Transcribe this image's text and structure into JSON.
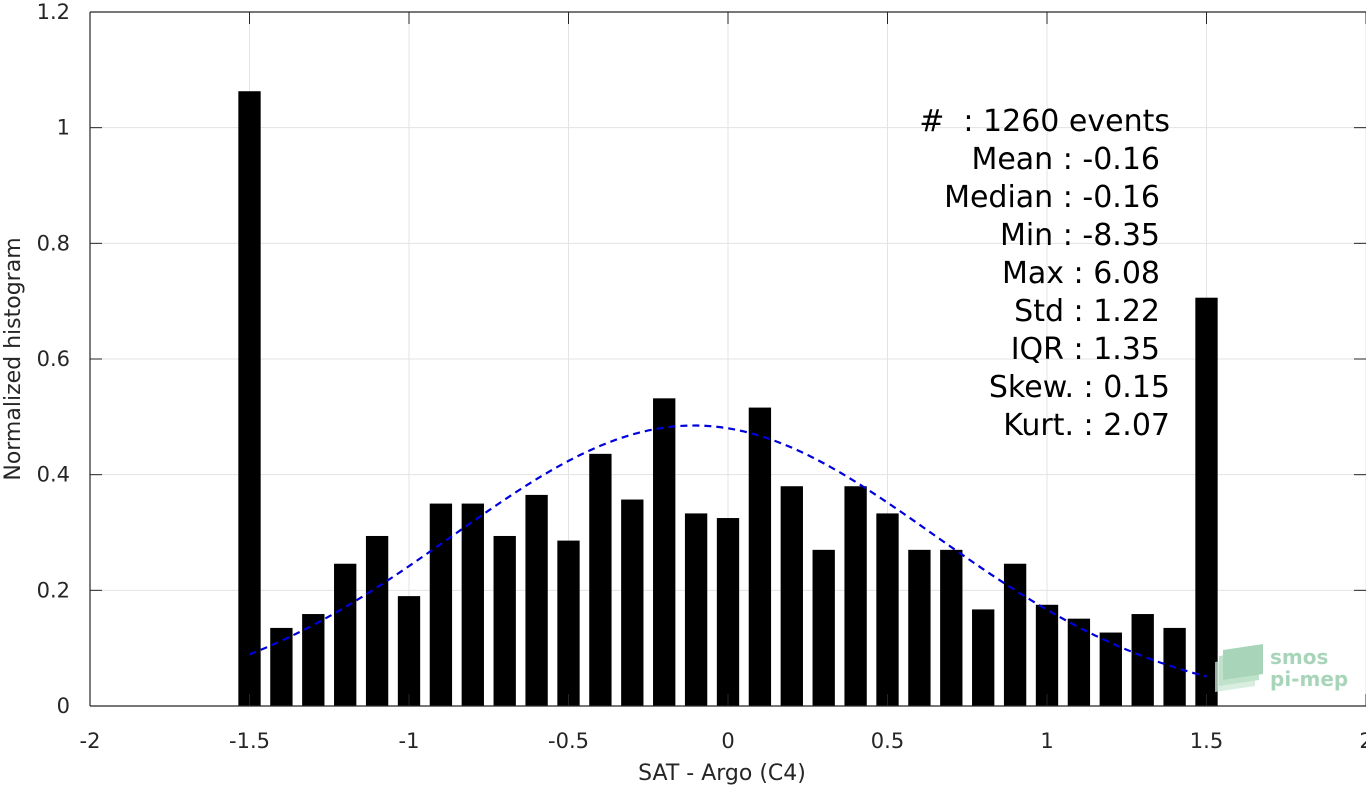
{
  "chart_data": {
    "type": "bar",
    "xlabel": "SAT - Argo (C4)",
    "ylabel": "Normalized histogram",
    "xlim": [
      -2,
      2
    ],
    "ylim": [
      0,
      1.2
    ],
    "xticks": [
      "-2",
      "-1.5",
      "-1",
      "-0.5",
      "0",
      "0.5",
      "1",
      "1.5",
      "2"
    ],
    "xtick_values": [
      -2,
      -1.5,
      -1,
      -0.5,
      0,
      0.5,
      1,
      1.5,
      2
    ],
    "yticks": [
      "0",
      "0.2",
      "0.4",
      "0.6",
      "0.8",
      "1",
      "1.2"
    ],
    "ytick_values": [
      0,
      0.2,
      0.4,
      0.6,
      0.8,
      1,
      1.2
    ],
    "grid": true,
    "bar_color": "#000000",
    "bar_width": 0.07,
    "x": [
      -1.5,
      -1.4,
      -1.3,
      -1.2,
      -1.1,
      -1.0,
      -0.9,
      -0.8,
      -0.7,
      -0.6,
      -0.5,
      -0.4,
      -0.3,
      -0.2,
      -0.1,
      0.0,
      0.1,
      0.2,
      0.3,
      0.4,
      0.5,
      0.6,
      0.7,
      0.8,
      0.9,
      1.0,
      1.1,
      1.2,
      1.3,
      1.4,
      1.5
    ],
    "values": [
      1.063,
      0.135,
      0.159,
      0.246,
      0.294,
      0.19,
      0.35,
      0.35,
      0.294,
      0.365,
      0.286,
      0.436,
      0.357,
      0.532,
      0.333,
      0.325,
      0.516,
      0.38,
      0.27,
      0.38,
      0.333,
      0.27,
      0.27,
      0.167,
      0.246,
      0.175,
      0.151,
      0.127,
      0.159,
      0.135,
      0.706
    ],
    "fit_curve": {
      "style": "dashed",
      "color": "#0000dd",
      "x_range": [
        -1.5,
        1.5
      ],
      "mean": -0.107,
      "amplitude": 0.485,
      "sigma": 0.757
    },
    "stats": [
      {
        "label": "#  : 1260 events"
      },
      {
        "label": "Mean : -0.16"
      },
      {
        "label": "Median : -0.16"
      },
      {
        "label": "Min : -8.35"
      },
      {
        "label": "Max : 6.08"
      },
      {
        "label": "Std : 1.22"
      },
      {
        "label": "IQR : 1.35"
      },
      {
        "label": "Skew. : 0.15"
      },
      {
        "label": "Kurt. : 2.07"
      }
    ]
  },
  "logo": {
    "line1": "smos",
    "line2": "pi-mep",
    "color": "#8cc8a4"
  }
}
